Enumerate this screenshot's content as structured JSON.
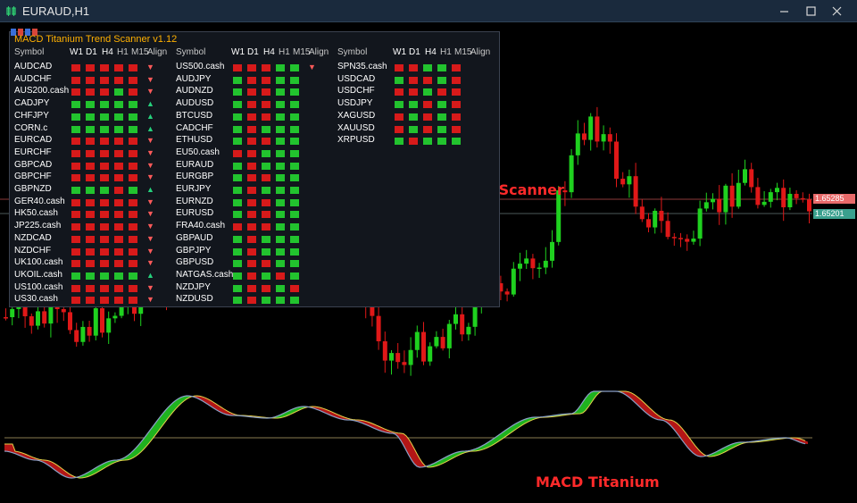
{
  "window": {
    "title": "EURAUD,H1"
  },
  "colors": {
    "bull": "#1fd11f",
    "bear": "#e01818",
    "scan_up": "#22c32e",
    "scan_down": "#d71a1a",
    "arrow_up": "#26d07c",
    "arrow_down": "#ff5a5a",
    "title": "#ffb000",
    "label_red": "#ff2a2a"
  },
  "price_tags": {
    "upper": "1.65285",
    "lower": "1.65201"
  },
  "scanner": {
    "title": "MACD Titanium Trend Scanner  v1.12",
    "headers": {
      "symbol": "Symbol",
      "w1": "W1",
      "d1": "D1",
      "h4": "H4",
      "h1": "H1",
      "m15": "M15",
      "align": "Align"
    },
    "columns": [
      {
        "rows": [
          {
            "symbol": "AUDCAD",
            "cells": [
              "d",
              "d",
              "d",
              "d",
              "d"
            ],
            "align": "down"
          },
          {
            "symbol": "AUDCHF",
            "cells": [
              "d",
              "d",
              "d",
              "d",
              "d"
            ],
            "align": "down"
          },
          {
            "symbol": "AUS200.cash",
            "cells": [
              "d",
              "d",
              "d",
              "u",
              "d"
            ],
            "align": "down"
          },
          {
            "symbol": "CADJPY",
            "cells": [
              "u",
              "u",
              "u",
              "u",
              "u"
            ],
            "align": "up"
          },
          {
            "symbol": "CHFJPY",
            "cells": [
              "u",
              "u",
              "u",
              "u",
              "u"
            ],
            "align": "up"
          },
          {
            "symbol": "CORN.c",
            "cells": [
              "u",
              "u",
              "u",
              "u",
              "u"
            ],
            "align": "up"
          },
          {
            "symbol": "EURCAD",
            "cells": [
              "d",
              "d",
              "d",
              "d",
              "d"
            ],
            "align": "down"
          },
          {
            "symbol": "EURCHF",
            "cells": [
              "d",
              "d",
              "d",
              "d",
              "d"
            ],
            "align": "down"
          },
          {
            "symbol": "GBPCAD",
            "cells": [
              "d",
              "d",
              "d",
              "d",
              "d"
            ],
            "align": "down"
          },
          {
            "symbol": "GBPCHF",
            "cells": [
              "d",
              "d",
              "d",
              "d",
              "d"
            ],
            "align": "down"
          },
          {
            "symbol": "GBPNZD",
            "cells": [
              "u",
              "u",
              "u",
              "d",
              "u"
            ],
            "align": "up"
          },
          {
            "symbol": "GER40.cash",
            "cells": [
              "d",
              "d",
              "d",
              "d",
              "d"
            ],
            "align": "down"
          },
          {
            "symbol": "HK50.cash",
            "cells": [
              "d",
              "d",
              "d",
              "d",
              "d"
            ],
            "align": "down"
          },
          {
            "symbol": "JP225.cash",
            "cells": [
              "d",
              "d",
              "d",
              "d",
              "d"
            ],
            "align": "down"
          },
          {
            "symbol": "NZDCAD",
            "cells": [
              "d",
              "d",
              "d",
              "d",
              "d"
            ],
            "align": "down"
          },
          {
            "symbol": "NZDCHF",
            "cells": [
              "d",
              "d",
              "d",
              "d",
              "d"
            ],
            "align": "down"
          },
          {
            "symbol": "UK100.cash",
            "cells": [
              "d",
              "d",
              "d",
              "d",
              "d"
            ],
            "align": "down"
          },
          {
            "symbol": "UKOIL.cash",
            "cells": [
              "u",
              "u",
              "u",
              "u",
              "u"
            ],
            "align": "up"
          },
          {
            "symbol": "US100.cash",
            "cells": [
              "d",
              "d",
              "d",
              "d",
              "d"
            ],
            "align": "down"
          },
          {
            "symbol": "US30.cash",
            "cells": [
              "d",
              "d",
              "d",
              "d",
              "d"
            ],
            "align": "down"
          }
        ]
      },
      {
        "rows": [
          {
            "symbol": "US500.cash",
            "cells": [
              "d",
              "d",
              "d",
              "u",
              "u"
            ],
            "align": "down"
          },
          {
            "symbol": "AUDJPY",
            "cells": [
              "u",
              "d",
              "d",
              "u",
              "u"
            ],
            "align": ""
          },
          {
            "symbol": "AUDNZD",
            "cells": [
              "u",
              "d",
              "d",
              "u",
              "u"
            ],
            "align": ""
          },
          {
            "symbol": "AUDUSD",
            "cells": [
              "u",
              "d",
              "d",
              "u",
              "u"
            ],
            "align": ""
          },
          {
            "symbol": "BTCUSD",
            "cells": [
              "u",
              "d",
              "d",
              "u",
              "u"
            ],
            "align": ""
          },
          {
            "symbol": "CADCHF",
            "cells": [
              "u",
              "d",
              "u",
              "u",
              "u"
            ],
            "align": ""
          },
          {
            "symbol": "ETHUSD",
            "cells": [
              "u",
              "d",
              "d",
              "u",
              "u"
            ],
            "align": ""
          },
          {
            "symbol": "EU50.cash",
            "cells": [
              "d",
              "d",
              "u",
              "u",
              "u"
            ],
            "align": ""
          },
          {
            "symbol": "EURAUD",
            "cells": [
              "u",
              "d",
              "u",
              "u",
              "u"
            ],
            "align": ""
          },
          {
            "symbol": "EURGBP",
            "cells": [
              "u",
              "d",
              "d",
              "u",
              "u"
            ],
            "align": ""
          },
          {
            "symbol": "EURJPY",
            "cells": [
              "u",
              "d",
              "u",
              "u",
              "u"
            ],
            "align": ""
          },
          {
            "symbol": "EURNZD",
            "cells": [
              "u",
              "d",
              "d",
              "u",
              "u"
            ],
            "align": ""
          },
          {
            "symbol": "EURUSD",
            "cells": [
              "u",
              "d",
              "d",
              "u",
              "u"
            ],
            "align": ""
          },
          {
            "symbol": "FRA40.cash",
            "cells": [
              "d",
              "d",
              "d",
              "u",
              "u"
            ],
            "align": ""
          },
          {
            "symbol": "GBPAUD",
            "cells": [
              "u",
              "d",
              "u",
              "u",
              "u"
            ],
            "align": ""
          },
          {
            "symbol": "GBPJPY",
            "cells": [
              "u",
              "d",
              "u",
              "u",
              "u"
            ],
            "align": ""
          },
          {
            "symbol": "GBPUSD",
            "cells": [
              "u",
              "d",
              "d",
              "u",
              "u"
            ],
            "align": ""
          },
          {
            "symbol": "NATGAS.cash",
            "cells": [
              "u",
              "d",
              "u",
              "d",
              "u"
            ],
            "align": ""
          },
          {
            "symbol": "NZDJPY",
            "cells": [
              "u",
              "d",
              "d",
              "u",
              "d"
            ],
            "align": ""
          },
          {
            "symbol": "NZDUSD",
            "cells": [
              "u",
              "d",
              "u",
              "u",
              "u"
            ],
            "align": ""
          }
        ]
      },
      {
        "rows": [
          {
            "symbol": "SPN35.cash",
            "cells": [
              "d",
              "d",
              "u",
              "u",
              "d"
            ],
            "align": ""
          },
          {
            "symbol": "USDCAD",
            "cells": [
              "u",
              "d",
              "d",
              "u",
              "d"
            ],
            "align": ""
          },
          {
            "symbol": "USDCHF",
            "cells": [
              "d",
              "d",
              "u",
              "d",
              "d"
            ],
            "align": ""
          },
          {
            "symbol": "USDJPY",
            "cells": [
              "u",
              "u",
              "d",
              "u",
              "d"
            ],
            "align": ""
          },
          {
            "symbol": "XAGUSD",
            "cells": [
              "d",
              "u",
              "d",
              "u",
              "d"
            ],
            "align": ""
          },
          {
            "symbol": "XAUUSD",
            "cells": [
              "d",
              "u",
              "d",
              "u",
              "d"
            ],
            "align": ""
          },
          {
            "symbol": "XRPUSD",
            "cells": [
              "u",
              "d",
              "u",
              "u",
              "u"
            ],
            "align": ""
          }
        ]
      }
    ]
  },
  "labels": {
    "scanner_caption": "MACD Titanium Trend Scanner",
    "indicator_caption": "MACD Titanium"
  }
}
